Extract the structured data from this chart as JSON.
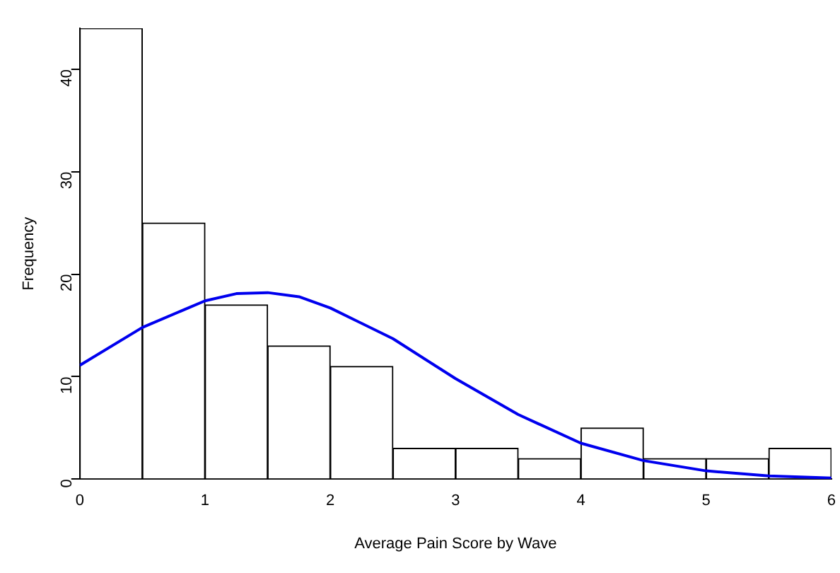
{
  "chart_data": {
    "type": "histogram",
    "xlabel": "Average Pain Score by Wave",
    "ylabel": "Frequency",
    "bins": [
      0,
      0.5,
      1,
      1.5,
      2,
      2.5,
      3,
      3.5,
      4,
      4.5,
      5,
      5.5,
      6
    ],
    "values": [
      44,
      25,
      17,
      13,
      11,
      3,
      3,
      2,
      5,
      2,
      2,
      3
    ],
    "color": "#ffffff",
    "series": [
      {
        "type": "line",
        "color": "#0000ee",
        "x": [
          0,
          0.5,
          1,
          1.25,
          1.5,
          1.75,
          2,
          2.5,
          3,
          3.5,
          4,
          4.5,
          5,
          5.5,
          6
        ],
        "values": [
          11.1,
          14.8,
          17.4,
          18.1,
          18.2,
          17.8,
          16.7,
          13.7,
          9.8,
          6.3,
          3.5,
          1.8,
          0.8,
          0.3,
          0.1
        ]
      }
    ],
    "xlim": [
      0,
      6
    ],
    "xticks": [
      0,
      1,
      2,
      3,
      4,
      5,
      6
    ],
    "ylim": [
      0,
      44
    ],
    "yticks": [
      0,
      10,
      20,
      30,
      40
    ],
    "grid": false,
    "legend": false
  }
}
